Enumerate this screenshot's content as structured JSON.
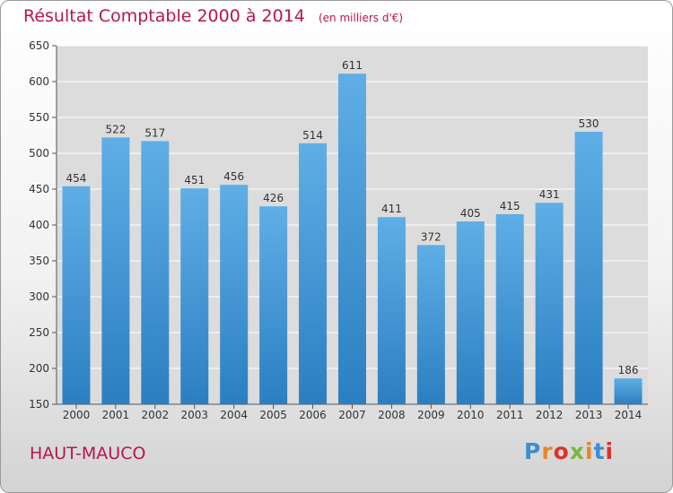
{
  "chart_data": {
    "type": "bar",
    "title": "Résultat Comptable 2000 à 2014",
    "subtitle": "(en milliers d'€)",
    "categories": [
      "2000",
      "2001",
      "2002",
      "2003",
      "2004",
      "2005",
      "2006",
      "2007",
      "2008",
      "2009",
      "2010",
      "2011",
      "2012",
      "2013",
      "2014"
    ],
    "values": [
      454,
      522,
      517,
      451,
      456,
      426,
      514,
      611,
      411,
      372,
      405,
      415,
      431,
      530,
      186
    ],
    "ylim": [
      150,
      650
    ],
    "yticks": [
      150,
      200,
      250,
      300,
      350,
      400,
      450,
      500,
      550,
      600,
      650
    ],
    "xlabel": "",
    "ylabel": "",
    "grid": true,
    "colors": {
      "bar_top": "#5faee6",
      "bar_bottom": "#2b7fc1",
      "grid": "#ffffff",
      "plot_bg": "#dcdcdc"
    }
  },
  "footer": {
    "commune": "HAUT-MAUCO",
    "logo": "Proxiti",
    "logo_colors": [
      "#3a8fd4",
      "#e8862a",
      "#d9342b",
      "#7ab648",
      "#e8862a",
      "#3a8fd4",
      "#d9342b"
    ]
  }
}
